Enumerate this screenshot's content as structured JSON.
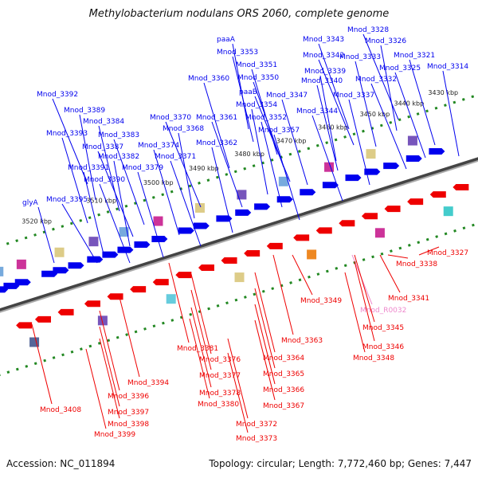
{
  "title": "Methylobacterium nodulans ORS 2060, complete genome",
  "footer": {
    "accession": "Accession: NC_011894",
    "stats": "Topology: circular; Length: 7,772,460 bp; Genes: 7,447"
  },
  "colors": {
    "forward": "#0000ee",
    "reverse": "#ee0000",
    "rna": "#ee88cc",
    "backbone": "#888888",
    "tick": "#228822"
  },
  "kbp_ticks": [
    "3430 kbp",
    "3440 kbp",
    "3450 kbp",
    "3460 kbp",
    "3470 kbp",
    "3480 kbp",
    "3490 kbp",
    "3500 kbp",
    "3510 kbp",
    "3520 kbp"
  ],
  "forward_genes": [
    "paaA",
    "Mnod_3353",
    "Mnod_3351",
    "Mnod_3350",
    "paaB",
    "Mnod_3354",
    "Mnod_3352",
    "Mnod_3357",
    "Mnod_3343",
    "Mnod_3342",
    "Mnod_3339",
    "Mnod_3340",
    "Mnod_3347",
    "Mnod_3344",
    "Mnod_3328",
    "Mnod_3326",
    "Mnod_3333",
    "Mnod_3321",
    "Mnod_3325",
    "Mnod_3332",
    "Mnod_3314",
    "Mnod_3337",
    "Mnod_3360",
    "Mnod_3361",
    "Mnod_3370",
    "Mnod_3368",
    "Mnod_3362",
    "Mnod_3374",
    "Mnod_3371",
    "Mnod_3392",
    "Mnod_3389",
    "Mnod_3384",
    "Mnod_3393",
    "Mnod_3383",
    "Mnod_3387",
    "Mnod_3382",
    "Mnod_3391",
    "Mnod_3379",
    "Mnod_3390",
    "Mnod_3395",
    "glyA"
  ],
  "reverse_genes": [
    "Mnod_3327",
    "Mnod_3338",
    "Mnod_3341",
    "Mnod_R0032",
    "Mnod_3349",
    "Mnod_3345",
    "Mnod_3346",
    "Mnod_3348",
    "Mnod_3363",
    "Mnod_3364",
    "Mnod_3365",
    "Mnod_3366",
    "Mnod_3367",
    "Mnod_3372",
    "Mnod_3373",
    "Mnod_3381",
    "Mnod_3376",
    "Mnod_3377",
    "Mnod_3378",
    "Mnod_3380",
    "Mnod_3394",
    "Mnod_3396",
    "Mnod_3397",
    "Mnod_3398",
    "Mnod_3399",
    "Mnod_3408"
  ]
}
